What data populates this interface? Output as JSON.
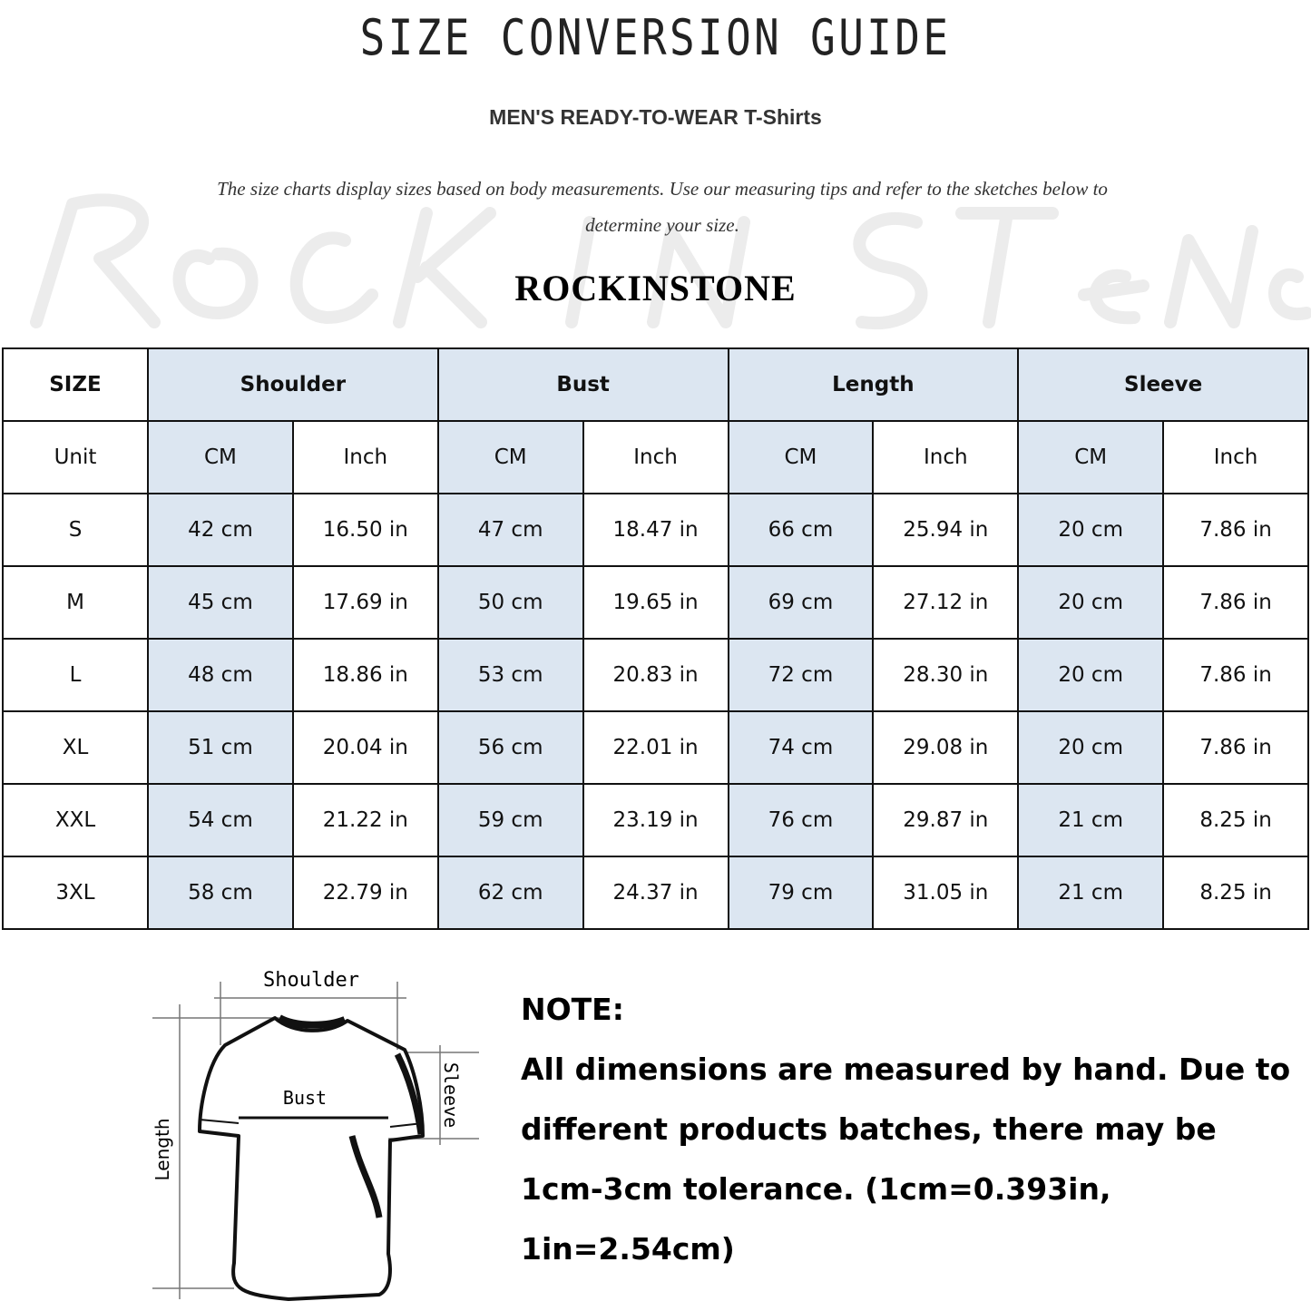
{
  "header": {
    "title": "SIZE CONVERSION GUIDE",
    "subtitle": "MEN'S READY-TO-WEAR T-Shirts",
    "description": "The size charts display sizes based on body measurements. Use our measuring tips and refer to the sketches below to determine your size.",
    "watermark": "Rock in Stone",
    "brand": "ROCKINSTONE"
  },
  "table": {
    "size_label": "SIZE",
    "unit_label": "Unit",
    "groups": [
      "Shoulder",
      "Bust",
      "Length",
      "Sleeve"
    ],
    "units": [
      "CM",
      "Inch",
      "CM",
      "Inch",
      "CM",
      "Inch",
      "CM",
      "Inch"
    ],
    "rows": [
      {
        "size": "S",
        "values": [
          "42 cm",
          "16.50 in",
          "47 cm",
          "18.47  in",
          "66 cm",
          "25.94  in",
          "20 cm",
          "7.86  in"
        ]
      },
      {
        "size": "M",
        "values": [
          "45 cm",
          "17.69  in",
          "50 cm",
          "19.65  in",
          "69 cm",
          "27.12  in",
          "20 cm",
          "7.86  in"
        ]
      },
      {
        "size": "L",
        "values": [
          "48 cm",
          "18.86  in",
          "53 cm",
          "20.83  in",
          "72 cm",
          "28.30  in",
          "20 cm",
          "7.86  in"
        ]
      },
      {
        "size": "XL",
        "values": [
          "51 cm",
          "20.04  in",
          "56 cm",
          "22.01  in",
          "74 cm",
          "29.08  in",
          "20 cm",
          "7.86  in"
        ]
      },
      {
        "size": "XXL",
        "values": [
          "54 cm",
          "21.22  in",
          "59 cm",
          "23.19  in",
          "76 cm",
          "29.87  in",
          "21 cm",
          "8.25  in"
        ]
      },
      {
        "size": "3XL",
        "values": [
          "58 cm",
          "22.79  in",
          "62 cm",
          "24.37  in",
          "79 cm",
          "31.05  in",
          "21 cm",
          "8.25  in"
        ]
      }
    ],
    "colors": {
      "highlight": "#dce6f1",
      "border": "#111111"
    }
  },
  "sketch": {
    "shoulder": "Shoulder",
    "bust": "Bust",
    "length": "Length",
    "sleeve": "Sleeve"
  },
  "note": {
    "heading": "NOTE:",
    "text": "All dimensions are measured by hand. Due to different products batches, there may be 1cm-3cm tolerance. (1cm=0.393in, 1in=2.54cm)"
  }
}
